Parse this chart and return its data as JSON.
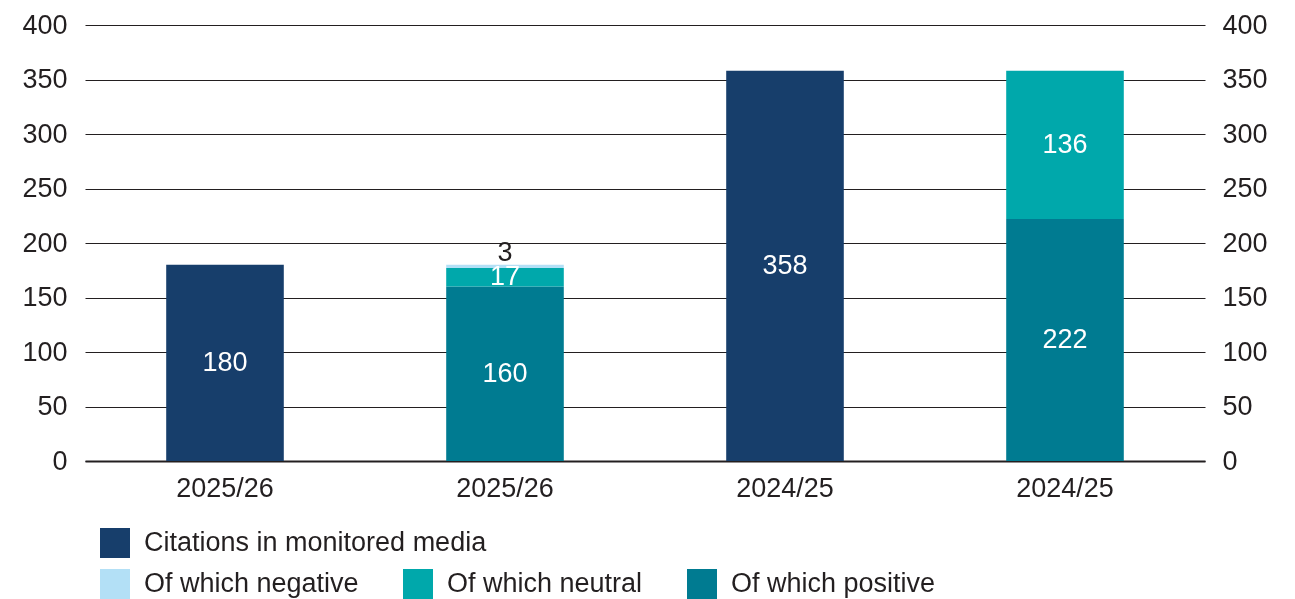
{
  "chart_data": {
    "type": "bar",
    "stacked": true,
    "categories": [
      "2025/26",
      "2025/26",
      "2024/25",
      "2024/25"
    ],
    "series": [
      {
        "name": "Citations in monitored media",
        "color": "#173e6b",
        "values": [
          180,
          null,
          358,
          null
        ]
      },
      {
        "name": "Of which positive",
        "color": "#007b91",
        "values": [
          null,
          160,
          null,
          222
        ]
      },
      {
        "name": "Of which neutral",
        "color": "#00a8ab",
        "values": [
          null,
          17,
          null,
          136
        ]
      },
      {
        "name": "Of which negative",
        "color": "#b3e0f6",
        "values": [
          null,
          3,
          null,
          null
        ]
      }
    ],
    "ylim": [
      0,
      400
    ],
    "yticks": [
      0,
      50,
      100,
      150,
      200,
      250,
      300,
      350,
      400
    ],
    "y2lim": [
      0,
      400
    ],
    "y2ticks": [
      0,
      50,
      100,
      150,
      200,
      250,
      300,
      350,
      400
    ],
    "grid": "y",
    "legend": "bottom",
    "data_labels": true
  }
}
